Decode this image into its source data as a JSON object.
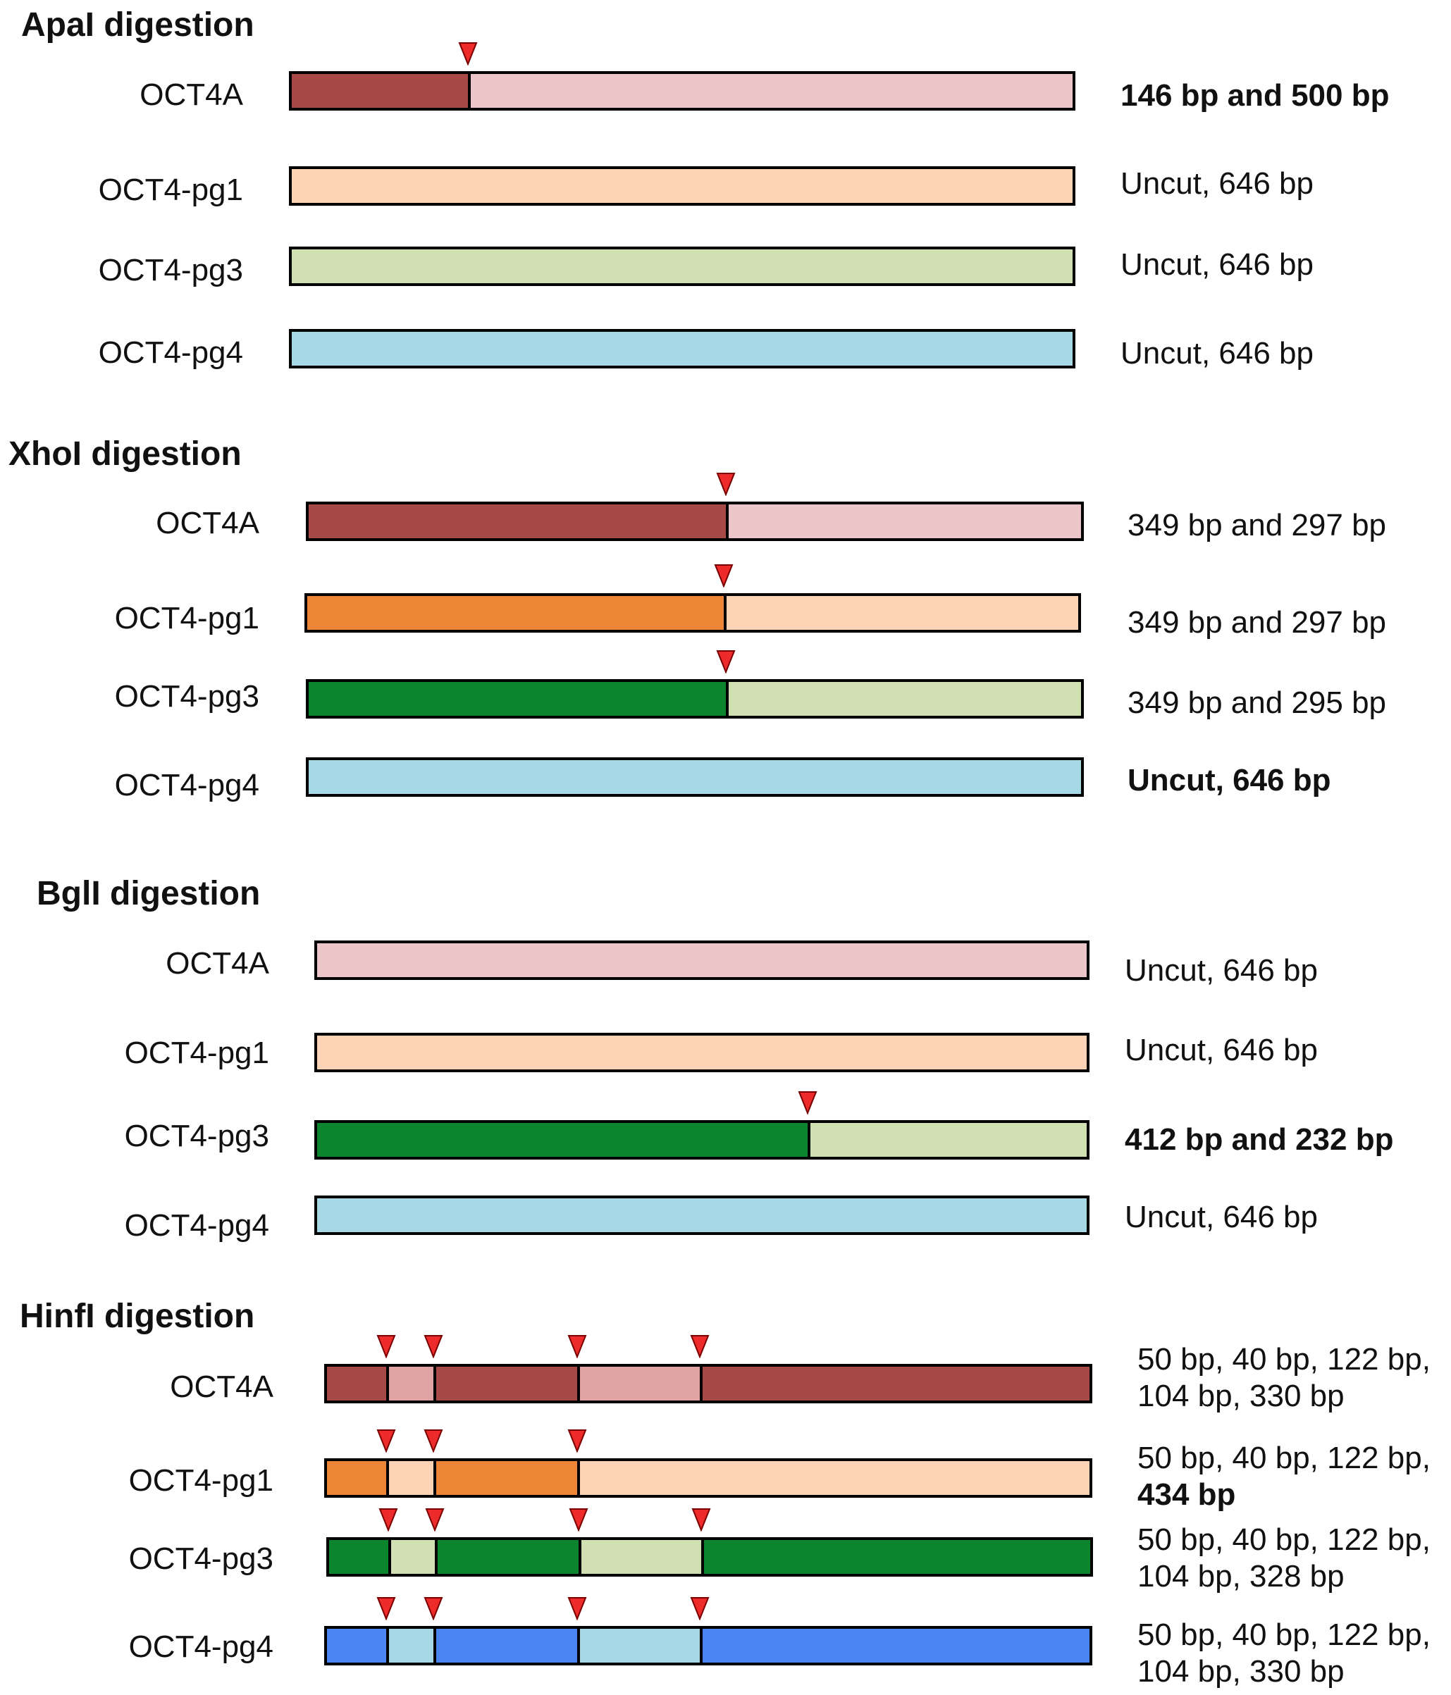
{
  "colors": {
    "oct4a_dark": "#a74a47",
    "oct4a_light": "#ebc5c7",
    "oct4a_mid": "#dfa3a3",
    "pg1_dark": "#ec8636",
    "pg1_light": "#fcd3b5",
    "pg3_dark": "#0b862f",
    "pg3_light": "#d1e0b3",
    "pg4_dark": "#4a86f2",
    "pg4_light": "#a6d9e5",
    "cut_marker": "#ee2b2b"
  },
  "sections": [
    {
      "title": "ApaI digestion",
      "rows": [
        {
          "name": "OCT4A",
          "result": [
            {
              "text": "146 bp and 500 bp",
              "bold": true
            }
          ],
          "cuts": [
            146
          ],
          "segments": [
            "oct4a_dark",
            "oct4a_light"
          ]
        },
        {
          "name": "OCT4-pg1",
          "result": [
            {
              "text": "Uncut, 646 bp",
              "bold": false
            }
          ],
          "cuts": [],
          "segments": [
            "pg1_light"
          ]
        },
        {
          "name": "OCT4-pg3",
          "result": [
            {
              "text": "Uncut, 646 bp",
              "bold": false
            }
          ],
          "cuts": [],
          "segments": [
            "pg3_light"
          ]
        },
        {
          "name": "OCT4-pg4",
          "result": [
            {
              "text": "Uncut, 646 bp",
              "bold": false
            }
          ],
          "cuts": [],
          "segments": [
            "pg4_light"
          ]
        }
      ]
    },
    {
      "title": "XhoI digestion",
      "rows": [
        {
          "name": "OCT4A",
          "result": [
            {
              "text": "349 bp and 297 bp",
              "bold": false
            }
          ],
          "cuts": [
            349
          ],
          "segments": [
            "oct4a_dark",
            "oct4a_light"
          ]
        },
        {
          "name": "OCT4-pg1",
          "result": [
            {
              "text": "349 bp and 297 bp",
              "bold": false
            }
          ],
          "cuts": [
            349
          ],
          "segments": [
            "pg1_dark",
            "pg1_light"
          ]
        },
        {
          "name": "OCT4-pg3",
          "result": [
            {
              "text": "349 bp and 295 bp",
              "bold": false
            }
          ],
          "cuts": [
            349
          ],
          "segments": [
            "pg3_dark",
            "pg3_light"
          ]
        },
        {
          "name": "OCT4-pg4",
          "result": [
            {
              "text": "Uncut, 646 bp",
              "bold": true
            }
          ],
          "cuts": [],
          "segments": [
            "pg4_light"
          ]
        }
      ]
    },
    {
      "title": "BglI digestion",
      "rows": [
        {
          "name": "OCT4A",
          "result": [
            {
              "text": "Uncut, 646 bp",
              "bold": false
            }
          ],
          "cuts": [],
          "segments": [
            "oct4a_light"
          ]
        },
        {
          "name": "OCT4-pg1",
          "result": [
            {
              "text": "Uncut, 646 bp",
              "bold": false
            }
          ],
          "cuts": [],
          "segments": [
            "pg1_light"
          ]
        },
        {
          "name": "OCT4-pg3",
          "result": [
            {
              "text": "412 bp and 232 bp",
              "bold": true
            }
          ],
          "cuts": [
            412
          ],
          "segments": [
            "pg3_dark",
            "pg3_light"
          ]
        },
        {
          "name": "OCT4-pg4",
          "result": [
            {
              "text": "Uncut, 646 bp",
              "bold": false
            }
          ],
          "cuts": [],
          "segments": [
            "pg4_light"
          ]
        }
      ]
    },
    {
      "title": "HinfI digestion",
      "rows": [
        {
          "name": "OCT4A",
          "result": [
            {
              "text": "50 bp, 40 bp, 122 bp,",
              "bold": false
            },
            {
              "text": "104 bp, 330 bp",
              "bold": false
            }
          ],
          "cuts": [
            50,
            90,
            212,
            316
          ],
          "segments": [
            "oct4a_dark",
            "oct4a_mid",
            "oct4a_dark",
            "oct4a_mid",
            "oct4a_dark"
          ]
        },
        {
          "name": "OCT4-pg1",
          "result": [
            {
              "text": "50 bp, 40 bp, 122 bp,",
              "bold": false
            },
            {
              "text": "434 bp",
              "bold": true
            }
          ],
          "cuts": [
            50,
            90,
            212
          ],
          "segments": [
            "pg1_dark",
            "pg1_light",
            "pg1_dark",
            "pg1_light"
          ]
        },
        {
          "name": "OCT4-pg3",
          "result": [
            {
              "text": "50 bp, 40 bp, 122 bp,",
              "bold": false
            },
            {
              "text": "104 bp, 328 bp",
              "bold": false
            }
          ],
          "cuts": [
            50,
            90,
            212,
            316
          ],
          "segments": [
            "pg3_dark",
            "pg3_light",
            "pg3_dark",
            "pg3_light",
            "pg3_dark"
          ]
        },
        {
          "name": "OCT4-pg4",
          "result": [
            {
              "text": "50 bp, 40 bp, 122 bp,",
              "bold": false
            },
            {
              "text": "104 bp, 330 bp",
              "bold": false
            }
          ],
          "cuts": [
            50,
            90,
            212,
            316
          ],
          "segments": [
            "pg4_dark",
            "pg4_light",
            "pg4_dark",
            "pg4_light",
            "pg4_dark"
          ]
        }
      ]
    }
  ]
}
